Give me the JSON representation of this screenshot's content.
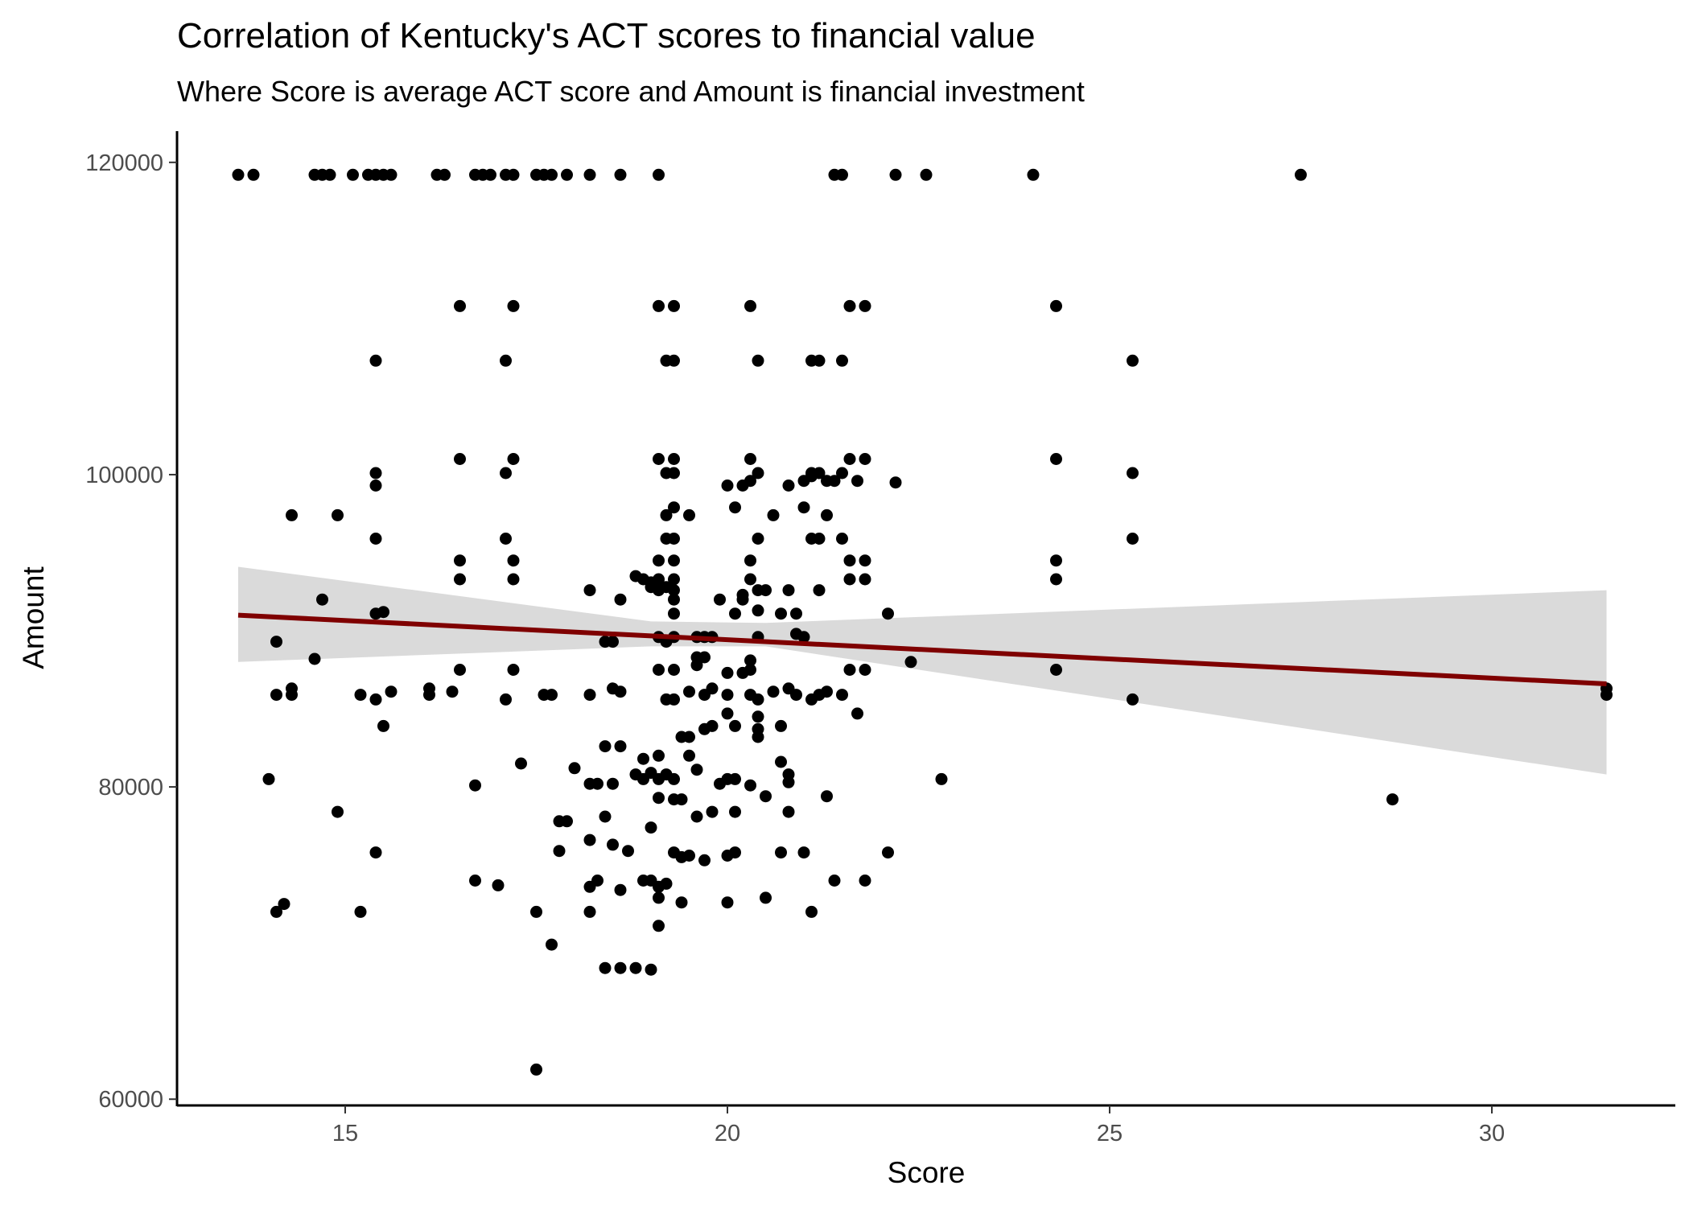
{
  "chart_data": {
    "type": "scatter",
    "title": "Correlation of Kentucky's ACT scores to financial value",
    "subtitle": "Where Score is average ACT score and Amount is financial investment",
    "xlabel": "Score",
    "ylabel": "Amount",
    "xlim": [
      12.8,
      32.4
    ],
    "ylim": [
      59600,
      122000
    ],
    "x_ticks": [
      15,
      20,
      25,
      30
    ],
    "x_tick_labels": [
      "15",
      "20",
      "25",
      "30"
    ],
    "y_ticks": [
      60000,
      80000,
      100000,
      120000
    ],
    "y_tick_labels": [
      "60000",
      "80000",
      "100000",
      "120000"
    ],
    "grid": false,
    "legend": "none",
    "colors": {
      "point": "#000000",
      "trend_line": "#7f0000",
      "confidence_band": "#d3d3d3",
      "axis": "#000000",
      "tick_label": "#4d4d4d"
    },
    "trend_line": {
      "method": "linear regression",
      "x": [
        13.6,
        31.5
      ],
      "y": [
        91000,
        86600
      ]
    },
    "confidence_band": {
      "x": [
        13.6,
        19.0,
        20.5,
        31.5
      ],
      "lower": [
        88000,
        89000,
        89000,
        80800
      ],
      "upper": [
        94100,
        90600,
        90500,
        92600
      ]
    },
    "points": [
      [
        13.6,
        119200
      ],
      [
        13.8,
        119200
      ],
      [
        14.6,
        119200
      ],
      [
        14.7,
        119200
      ],
      [
        14.8,
        119200
      ],
      [
        15.1,
        119200
      ],
      [
        15.3,
        119200
      ],
      [
        15.4,
        119200
      ],
      [
        15.5,
        119200
      ],
      [
        15.6,
        119200
      ],
      [
        16.2,
        119200
      ],
      [
        16.3,
        119200
      ],
      [
        16.7,
        119200
      ],
      [
        16.8,
        119200
      ],
      [
        16.9,
        119200
      ],
      [
        17.1,
        119200
      ],
      [
        17.2,
        119200
      ],
      [
        17.5,
        119200
      ],
      [
        17.6,
        119200
      ],
      [
        17.7,
        119200
      ],
      [
        17.9,
        119200
      ],
      [
        18.2,
        119200
      ],
      [
        18.6,
        119200
      ],
      [
        19.1,
        119200
      ],
      [
        21.4,
        119200
      ],
      [
        21.5,
        119200
      ],
      [
        22.2,
        119200
      ],
      [
        22.6,
        119200
      ],
      [
        24.0,
        119200
      ],
      [
        27.5,
        119200
      ],
      [
        16.5,
        110800
      ],
      [
        17.2,
        110800
      ],
      [
        19.1,
        110800
      ],
      [
        19.3,
        110800
      ],
      [
        20.3,
        110800
      ],
      [
        21.6,
        110800
      ],
      [
        21.8,
        110800
      ],
      [
        24.3,
        110800
      ],
      [
        15.4,
        107300
      ],
      [
        17.1,
        107300
      ],
      [
        19.2,
        107300
      ],
      [
        19.3,
        107300
      ],
      [
        20.4,
        107300
      ],
      [
        21.1,
        107300
      ],
      [
        21.2,
        107300
      ],
      [
        21.5,
        107300
      ],
      [
        25.3,
        107300
      ],
      [
        16.5,
        101000
      ],
      [
        17.2,
        101000
      ],
      [
        19.1,
        101000
      ],
      [
        19.3,
        101000
      ],
      [
        20.3,
        101000
      ],
      [
        21.6,
        101000
      ],
      [
        21.8,
        101000
      ],
      [
        24.3,
        101000
      ],
      [
        15.4,
        100100
      ],
      [
        17.1,
        100100
      ],
      [
        19.2,
        100100
      ],
      [
        19.3,
        100100
      ],
      [
        20.4,
        100100
      ],
      [
        21.1,
        100100
      ],
      [
        21.2,
        100100
      ],
      [
        21.5,
        100100
      ],
      [
        25.3,
        100100
      ],
      [
        15.4,
        99300
      ],
      [
        20.0,
        99300
      ],
      [
        20.2,
        99300
      ],
      [
        20.3,
        99600
      ],
      [
        20.8,
        99300
      ],
      [
        21.0,
        99600
      ],
      [
        21.1,
        99900
      ],
      [
        21.3,
        99600
      ],
      [
        21.4,
        99600
      ],
      [
        21.7,
        99600
      ],
      [
        22.2,
        99500
      ],
      [
        14.3,
        97400
      ],
      [
        14.9,
        97400
      ],
      [
        19.2,
        97400
      ],
      [
        19.3,
        97900
      ],
      [
        19.5,
        97400
      ],
      [
        20.1,
        97900
      ],
      [
        20.6,
        97400
      ],
      [
        21.0,
        97900
      ],
      [
        21.3,
        97400
      ],
      [
        15.4,
        95900
      ],
      [
        17.1,
        95900
      ],
      [
        19.2,
        95900
      ],
      [
        19.3,
        95900
      ],
      [
        20.4,
        95900
      ],
      [
        21.1,
        95900
      ],
      [
        21.2,
        95900
      ],
      [
        21.5,
        95900
      ],
      [
        25.3,
        95900
      ],
      [
        16.5,
        94500
      ],
      [
        17.2,
        94500
      ],
      [
        19.1,
        94500
      ],
      [
        19.3,
        94500
      ],
      [
        20.3,
        94500
      ],
      [
        21.6,
        94500
      ],
      [
        21.8,
        94500
      ],
      [
        24.3,
        94500
      ],
      [
        16.5,
        93300
      ],
      [
        17.2,
        93300
      ],
      [
        18.8,
        93500
      ],
      [
        18.9,
        93300
      ],
      [
        19.0,
        93100
      ],
      [
        19.1,
        93300
      ],
      [
        19.3,
        93300
      ],
      [
        20.3,
        93300
      ],
      [
        21.6,
        93300
      ],
      [
        21.8,
        93300
      ],
      [
        24.3,
        93300
      ],
      [
        18.2,
        92600
      ],
      [
        19.0,
        92800
      ],
      [
        19.1,
        92600
      ],
      [
        19.2,
        92800
      ],
      [
        19.3,
        92600
      ],
      [
        20.2,
        92300
      ],
      [
        20.4,
        92600
      ],
      [
        20.5,
        92600
      ],
      [
        20.8,
        92600
      ],
      [
        21.2,
        92600
      ],
      [
        14.7,
        92000
      ],
      [
        18.6,
        92000
      ],
      [
        19.3,
        92000
      ],
      [
        19.9,
        92000
      ],
      [
        20.2,
        92000
      ],
      [
        15.4,
        91100
      ],
      [
        15.5,
        91200
      ],
      [
        19.3,
        91100
      ],
      [
        20.1,
        91100
      ],
      [
        20.4,
        91300
      ],
      [
        20.7,
        91100
      ],
      [
        20.9,
        91100
      ],
      [
        22.1,
        91100
      ],
      [
        14.1,
        89300
      ],
      [
        18.4,
        89300
      ],
      [
        18.5,
        89300
      ],
      [
        19.1,
        89600
      ],
      [
        19.2,
        89300
      ],
      [
        19.3,
        89600
      ],
      [
        19.6,
        89600
      ],
      [
        19.7,
        89600
      ],
      [
        19.8,
        89600
      ],
      [
        20.4,
        89600
      ],
      [
        20.9,
        89800
      ],
      [
        21.0,
        89600
      ],
      [
        19.6,
        88300
      ],
      [
        19.7,
        88300
      ],
      [
        20.3,
        88100
      ],
      [
        14.6,
        88200
      ],
      [
        19.1,
        87500
      ],
      [
        19.3,
        87500
      ],
      [
        19.6,
        87800
      ],
      [
        20.0,
        87300
      ],
      [
        20.2,
        87300
      ],
      [
        20.3,
        87500
      ],
      [
        21.6,
        87500
      ],
      [
        21.8,
        87500
      ],
      [
        22.4,
        88000
      ],
      [
        24.3,
        87500
      ],
      [
        14.1,
        85900
      ],
      [
        14.3,
        85900
      ],
      [
        15.2,
        85900
      ],
      [
        16.1,
        85900
      ],
      [
        16.5,
        87500
      ],
      [
        17.2,
        87500
      ],
      [
        17.6,
        85900
      ],
      [
        17.7,
        85900
      ],
      [
        18.2,
        85900
      ],
      [
        18.5,
        86300
      ],
      [
        18.6,
        86100
      ],
      [
        19.2,
        85600
      ],
      [
        19.3,
        85600
      ],
      [
        19.5,
        86100
      ],
      [
        19.7,
        85900
      ],
      [
        19.8,
        86300
      ],
      [
        20.0,
        85900
      ],
      [
        20.3,
        85900
      ],
      [
        20.4,
        85600
      ],
      [
        20.6,
        86100
      ],
      [
        20.8,
        86300
      ],
      [
        20.9,
        85900
      ],
      [
        21.1,
        85600
      ],
      [
        21.2,
        85900
      ],
      [
        21.3,
        86100
      ],
      [
        21.5,
        85900
      ],
      [
        25.3,
        85600
      ],
      [
        31.5,
        86300
      ],
      [
        31.5,
        85900
      ],
      [
        14.3,
        86300
      ],
      [
        15.6,
        86100
      ],
      [
        16.1,
        86300
      ],
      [
        16.4,
        86100
      ],
      [
        17.1,
        85600
      ],
      [
        15.4,
        85600
      ],
      [
        15.5,
        83900
      ],
      [
        19.7,
        83700
      ],
      [
        19.8,
        83900
      ],
      [
        20.0,
        84700
      ],
      [
        20.1,
        83900
      ],
      [
        20.4,
        84500
      ],
      [
        20.4,
        83700
      ],
      [
        20.4,
        83200
      ],
      [
        20.7,
        83900
      ],
      [
        21.7,
        84700
      ],
      [
        19.4,
        83200
      ],
      [
        19.5,
        83200
      ],
      [
        18.4,
        82600
      ],
      [
        18.6,
        82600
      ],
      [
        19.1,
        82000
      ],
      [
        19.5,
        82000
      ],
      [
        17.3,
        81500
      ],
      [
        18.9,
        81800
      ],
      [
        20.7,
        81600
      ],
      [
        14.0,
        80500
      ],
      [
        16.7,
        80100
      ],
      [
        18.0,
        81200
      ],
      [
        18.2,
        80200
      ],
      [
        18.3,
        80200
      ],
      [
        18.5,
        80200
      ],
      [
        18.8,
        80800
      ],
      [
        18.9,
        80500
      ],
      [
        19.0,
        80900
      ],
      [
        19.1,
        80500
      ],
      [
        19.2,
        80800
      ],
      [
        19.3,
        80500
      ],
      [
        19.6,
        81100
      ],
      [
        19.9,
        80200
      ],
      [
        20.0,
        80500
      ],
      [
        20.1,
        80500
      ],
      [
        20.3,
        80100
      ],
      [
        20.8,
        80800
      ],
      [
        20.8,
        80300
      ],
      [
        22.8,
        80500
      ],
      [
        19.1,
        79300
      ],
      [
        19.3,
        79200
      ],
      [
        19.4,
        79200
      ],
      [
        20.5,
        79400
      ],
      [
        21.3,
        79400
      ],
      [
        28.7,
        79200
      ],
      [
        14.9,
        78400
      ],
      [
        18.4,
        78100
      ],
      [
        19.6,
        78100
      ],
      [
        19.8,
        78400
      ],
      [
        20.1,
        78400
      ],
      [
        20.8,
        78400
      ],
      [
        17.8,
        77800
      ],
      [
        17.9,
        77800
      ],
      [
        19.0,
        77400
      ],
      [
        18.2,
        76600
      ],
      [
        18.5,
        76300
      ],
      [
        15.4,
        75800
      ],
      [
        17.8,
        75900
      ],
      [
        18.7,
        75900
      ],
      [
        19.3,
        75800
      ],
      [
        19.4,
        75500
      ],
      [
        19.5,
        75600
      ],
      [
        19.7,
        75300
      ],
      [
        20.0,
        75600
      ],
      [
        20.1,
        75800
      ],
      [
        20.7,
        75800
      ],
      [
        21.0,
        75800
      ],
      [
        22.1,
        75800
      ],
      [
        16.7,
        74000
      ],
      [
        17.0,
        73700
      ],
      [
        18.2,
        73600
      ],
      [
        18.3,
        74000
      ],
      [
        18.6,
        73400
      ],
      [
        18.9,
        74000
      ],
      [
        19.0,
        74000
      ],
      [
        19.1,
        73600
      ],
      [
        19.2,
        73800
      ],
      [
        21.4,
        74000
      ],
      [
        21.8,
        74000
      ],
      [
        14.1,
        72000
      ],
      [
        14.2,
        72500
      ],
      [
        15.2,
        72000
      ],
      [
        17.5,
        72000
      ],
      [
        18.2,
        72000
      ],
      [
        19.1,
        72900
      ],
      [
        19.4,
        72600
      ],
      [
        20.0,
        72600
      ],
      [
        20.5,
        72900
      ],
      [
        21.1,
        72000
      ],
      [
        19.1,
        71100
      ],
      [
        17.7,
        69900
      ],
      [
        18.4,
        68400
      ],
      [
        18.6,
        68400
      ],
      [
        18.8,
        68400
      ],
      [
        19.0,
        68300
      ],
      [
        17.5,
        61900
      ]
    ]
  }
}
